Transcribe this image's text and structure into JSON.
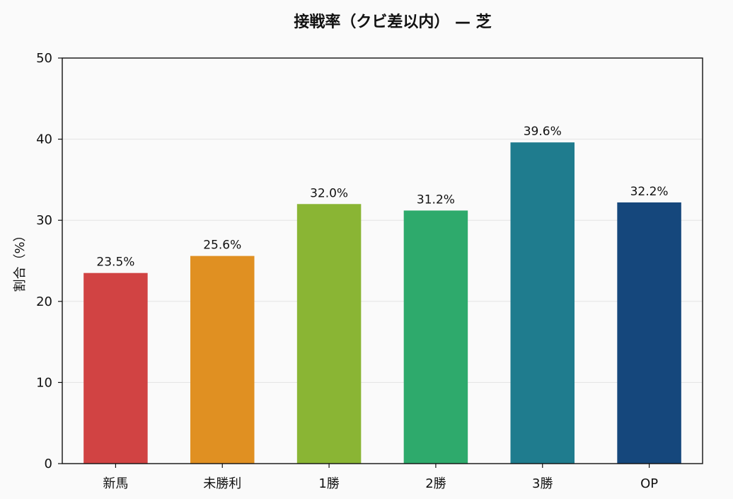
{
  "chart_data": {
    "type": "bar",
    "title": "接戦率（クビ差以内） — 芝",
    "xlabel": "",
    "ylabel": "割合（%）",
    "categories": [
      "新馬",
      "未勝利",
      "1勝",
      "2勝",
      "3勝",
      "OP"
    ],
    "values": [
      23.5,
      25.6,
      32.0,
      31.2,
      39.6,
      32.2
    ],
    "data_labels": [
      "23.5%",
      "25.6%",
      "32.0%",
      "31.2%",
      "39.6%",
      "32.2%"
    ],
    "colors": [
      "#d14343",
      "#e09022",
      "#8ab534",
      "#2eaa6c",
      "#1f7c8e",
      "#15477c"
    ],
    "ylim": [
      0,
      50
    ],
    "yticks": [
      0,
      10,
      20,
      30,
      40,
      50
    ],
    "grid": "horizontal",
    "legend": "none"
  }
}
